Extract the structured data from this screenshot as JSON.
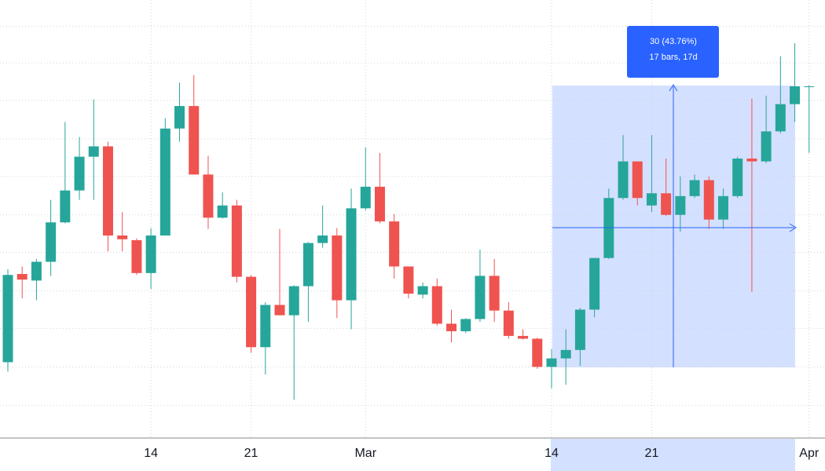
{
  "chart_data": {
    "type": "candlestick",
    "categories": [
      null,
      null,
      null,
      null,
      null,
      null,
      null,
      null,
      null,
      null,
      "14",
      null,
      null,
      null,
      null,
      null,
      null,
      "21",
      null,
      null,
      null,
      null,
      null,
      null,
      null,
      "Mar",
      null,
      null,
      null,
      null,
      null,
      null,
      null,
      null,
      null,
      null,
      null,
      null,
      "14",
      null,
      null,
      null,
      null,
      null,
      null,
      "21",
      null,
      null,
      null,
      null,
      null,
      null,
      null,
      null,
      null,
      null,
      "Apr"
    ],
    "open": [
      69.1,
      78.5,
      77.8,
      79.8,
      84.0,
      87.4,
      91.0,
      92.1,
      82.6,
      82.1,
      78.6,
      82.6,
      94.0,
      96.4,
      89.1,
      84.5,
      85.8,
      78.2,
      70.7,
      75.2,
      74.1,
      77.2,
      81.8,
      82.6,
      75.7,
      85.5,
      87.8,
      84.1,
      79.3,
      76.3,
      77.2,
      73.2,
      72.4,
      73.7,
      78.3,
      74.6,
      71.9,
      71.6,
      68.6,
      69.5,
      70.4,
      74.7,
      80.2,
      86.6,
      90.5,
      85.8,
      87.1,
      84.8,
      86.8,
      88.5,
      84.3,
      86.8,
      90.8,
      90.5,
      93.7,
      96.6,
      98.5
    ],
    "high": [
      79.0,
      79.3,
      80.1,
      86.4,
      94.7,
      93.1,
      97.1,
      92.6,
      85.1,
      82.3,
      83.4,
      95.1,
      98.9,
      99.7,
      91.1,
      87.2,
      86.4,
      78.4,
      75.5,
      83.3,
      77.3,
      81.9,
      85.8,
      83.4,
      87.6,
      92.0,
      91.4,
      84.9,
      79.3,
      77.6,
      78.0,
      74.7,
      73.8,
      81.1,
      80.1,
      75.5,
      72.6,
      71.7,
      70.5,
      72.6,
      74.9,
      80.2,
      87.6,
      93.3,
      90.5,
      93.3,
      90.8,
      88.9,
      89.1,
      88.9,
      87.6,
      91.0,
      97.2,
      97.5,
      101.7,
      103.1,
      98.6
    ],
    "low": [
      68.1,
      75.9,
      75.7,
      78.3,
      83.9,
      86.4,
      86.4,
      80.9,
      80.9,
      78.4,
      76.9,
      82.6,
      92.6,
      89.1,
      83.3,
      84.4,
      77.6,
      70.1,
      67.8,
      74.1,
      65.1,
      73.4,
      81.3,
      73.8,
      72.6,
      85.3,
      83.9,
      78.0,
      75.9,
      75.9,
      73.0,
      71.2,
      72.2,
      73.4,
      73.4,
      71.6,
      71.5,
      68.4,
      66.3,
      66.7,
      68.7,
      73.9,
      80.1,
      86.4,
      85.8,
      85.1,
      84.7,
      83.0,
      86.6,
      83.3,
      83.3,
      86.6,
      76.6,
      90.3,
      93.5,
      94.7,
      91.4
    ],
    "close": [
      78.4,
      77.9,
      79.8,
      84.0,
      87.4,
      91.0,
      92.1,
      82.6,
      82.2,
      78.6,
      82.6,
      94.0,
      96.4,
      89.1,
      84.5,
      85.8,
      78.2,
      70.7,
      75.2,
      74.1,
      77.2,
      81.8,
      82.6,
      75.7,
      85.5,
      87.8,
      84.1,
      79.3,
      76.4,
      77.2,
      73.2,
      72.4,
      73.7,
      78.3,
      74.6,
      71.9,
      71.6,
      68.6,
      69.5,
      70.4,
      74.7,
      80.2,
      86.6,
      90.5,
      86.6,
      87.1,
      84.8,
      86.8,
      88.5,
      84.3,
      86.8,
      90.8,
      90.5,
      93.7,
      96.6,
      98.5,
      98.5
    ],
    "up_color": "#26a69a",
    "down_color": "#ef5350",
    "ylim": [
      61.1,
      107.7
    ],
    "yticks": [
      64.5,
      68.6,
      72.7,
      76.7,
      80.8,
      84.8,
      88.9,
      92.9,
      97.0,
      101.0,
      104.9
    ],
    "grid": true,
    "annotation": {
      "label": "30 (43.76%)",
      "detail": "17 bars, 17d"
    }
  }
}
